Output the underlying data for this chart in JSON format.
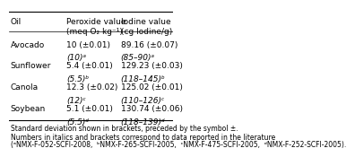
{
  "col_headers": [
    "Oil",
    "Peroxide value\n(meq O₂ kg⁻¹)",
    "Iodine value\n(cg Iodine/g)"
  ],
  "rows": [
    {
      "oil": "Avocado",
      "peroxide_main": "10 (±0.01)",
      "peroxide_ref": "(10)ᵃ",
      "iodine_main": "89.16 (±0.07)",
      "iodine_ref": "(85–90)ᵃ"
    },
    {
      "oil": "Sunflower",
      "peroxide_main": "5.4 (±0.01)",
      "peroxide_ref": "(5.5)ᵇ",
      "iodine_main": "129.23 (±0.03)",
      "iodine_ref": "(118–145)ᵇ"
    },
    {
      "oil": "Canola",
      "peroxide_main": "12.3 (±0.02)",
      "peroxide_ref": "(12)ᶜ",
      "iodine_main": "125.02 (±0.01)",
      "iodine_ref": "(110–126)ᶜ"
    },
    {
      "oil": "Soybean",
      "peroxide_main": "5.1 (±0.01)",
      "peroxide_ref": "(5.5)ᵈ",
      "iodine_main": "130.74 (±0.06)",
      "iodine_ref": "(118–139)ᵈ"
    }
  ],
  "footnote1": "Standard deviation shown in brackets, preceded by the symbol ±.",
  "footnote2": "Numbers in italics and brackets correspond to data reported in the literature",
  "footnote3": "(ᵃNMX-F-052-SCFI-2008,  ᵇNMX-F-265-SCFI-2005,  ᶜNMX-F-475-SCFI-2005,  ᵈNMX-F-252-SCFI-2005).",
  "bg_color": "#ffffff",
  "text_color": "#000000",
  "header_fontsize": 6.5,
  "body_fontsize": 6.5,
  "footnote_fontsize": 5.5
}
